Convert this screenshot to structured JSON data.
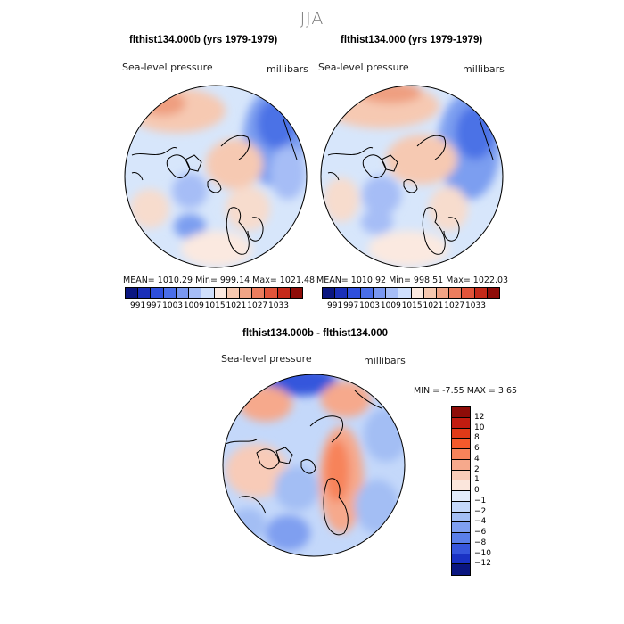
{
  "figure": {
    "title": "JJA"
  },
  "panels": [
    {
      "title": "flthist134.000b (yrs 1979-1979)",
      "variable_label": "Sea-level pressure",
      "units_label": "millibars",
      "stats": "MEAN= 1010.29   Min= 999.14   Max= 1021.48"
    },
    {
      "title": "flthist134.000 (yrs 1979-1979)",
      "variable_label": "Sea-level pressure",
      "units_label": "millibars",
      "stats": "MEAN= 1010.92   Min= 998.51   Max= 1022.03"
    },
    {
      "title": "flthist134.000b - flthist134.000",
      "variable_label": "Sea-level pressure",
      "units_label": "millibars",
      "stats": "MIN =   -7.55 MAX =    3.65"
    }
  ],
  "colorbar_top": {
    "colors": [
      "#0a1680",
      "#1a2fb8",
      "#2e4fdc",
      "#4a6ee8",
      "#7a98f0",
      "#a6bdf6",
      "#cfdffc",
      "#fbe9e0",
      "#f6c8b0",
      "#f1a486",
      "#ec7d5e",
      "#e2543a",
      "#c52a1a",
      "#8e0c08"
    ],
    "tick_labels": [
      "991",
      "997",
      "1003",
      "1009",
      "1015",
      "1021",
      "1027",
      "1033"
    ]
  },
  "colorbar_diff": {
    "colors": [
      "#8e0c08",
      "#c21c10",
      "#e03a18",
      "#f45a2c",
      "#f7835a",
      "#f6a98c",
      "#f8cbb8",
      "#fbe6dc",
      "#e2ecfb",
      "#c4d8fa",
      "#a3bef4",
      "#7f9ff0",
      "#5a7fea",
      "#3656dc",
      "#1a32c4",
      "#0a1680"
    ],
    "tick_labels": [
      "12",
      "10",
      "8",
      "6",
      "4",
      "2",
      "1",
      "0",
      "−1",
      "−2",
      "−4",
      "−6",
      "−8",
      "−10",
      "−12"
    ]
  }
}
